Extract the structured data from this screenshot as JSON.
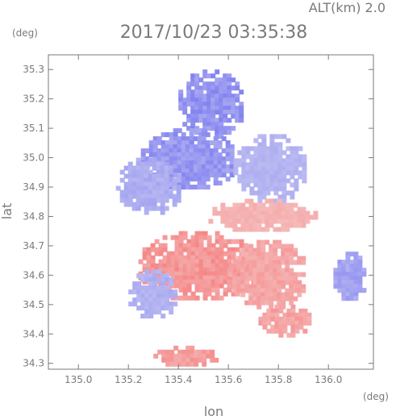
{
  "chart_data": {
    "type": "heatmap",
    "title": "2017/10/23 03:35:38",
    "annotation": "ALT(km) 2.0",
    "xlabel": "lon",
    "ylabel": "lat",
    "x_unit": "(deg)",
    "y_unit": "(deg)",
    "xlim": [
      134.88,
      136.18
    ],
    "ylim": [
      34.28,
      35.35
    ],
    "xticks": [
      "135.0",
      "135.2",
      "135.4",
      "135.6",
      "135.8",
      "136.0"
    ],
    "xtick_values": [
      135.0,
      135.2,
      135.4,
      135.6,
      135.8,
      136.0
    ],
    "yticks": [
      "34.3",
      "34.4",
      "34.5",
      "34.6",
      "34.7",
      "34.8",
      "34.9",
      "35.0",
      "35.1",
      "35.2",
      "35.3"
    ],
    "ytick_values": [
      34.3,
      34.4,
      34.5,
      34.6,
      34.7,
      34.8,
      34.9,
      35.0,
      35.1,
      35.2,
      35.3
    ],
    "grid": false,
    "colors": {
      "strong_negative": "#7b7bf0",
      "weak_negative": "#c8c8f2",
      "weak_positive": "#f5c8c8",
      "strong_positive": "#f58080",
      "frame": "#7a7a7a"
    },
    "regions": [
      {
        "lon": [
          135.4,
          135.65
        ],
        "lat": [
          35.08,
          35.3
        ],
        "value": -0.8
      },
      {
        "lon": [
          135.25,
          135.62
        ],
        "lat": [
          34.9,
          35.1
        ],
        "value": -0.75
      },
      {
        "lon": [
          135.62,
          135.9
        ],
        "lat": [
          34.86,
          35.08
        ],
        "value": -0.3
      },
      {
        "lon": [
          135.15,
          135.4
        ],
        "lat": [
          34.82,
          35.0
        ],
        "value": -0.4
      },
      {
        "lon": [
          135.52,
          135.95
        ],
        "lat": [
          34.76,
          34.86
        ],
        "value": 0.35
      },
      {
        "lon": [
          135.24,
          135.7
        ],
        "lat": [
          34.52,
          34.75
        ],
        "value": 0.8
      },
      {
        "lon": [
          135.6,
          135.9
        ],
        "lat": [
          34.5,
          34.72
        ],
        "value": 0.55
      },
      {
        "lon": [
          135.2,
          135.38
        ],
        "lat": [
          34.46,
          34.62
        ],
        "value": -0.35
      },
      {
        "lon": [
          135.72,
          135.92
        ],
        "lat": [
          34.4,
          34.5
        ],
        "value": 0.6
      },
      {
        "lon": [
          135.3,
          135.55
        ],
        "lat": [
          34.3,
          34.36
        ],
        "value": 0.7
      },
      {
        "lon": [
          136.02,
          136.14
        ],
        "lat": [
          34.52,
          34.68
        ],
        "value": -0.55
      }
    ]
  }
}
